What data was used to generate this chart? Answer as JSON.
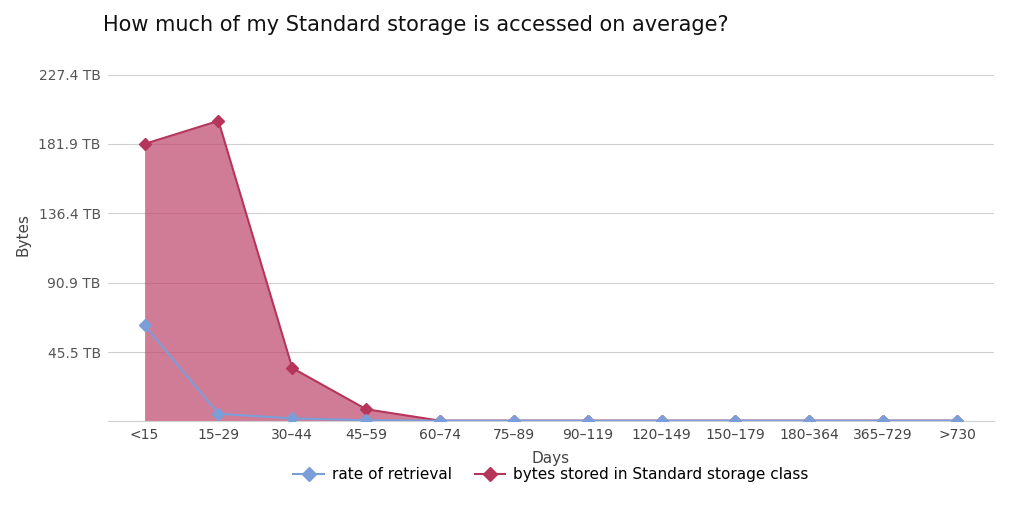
{
  "title": "How much of my Standard storage is accessed on average?",
  "xlabel": "Days",
  "ylabel": "Bytes",
  "categories": [
    "<15",
    "15–29",
    "30–44",
    "45–59",
    "60–74",
    "75–89",
    "90–119",
    "120–149",
    "150–179",
    "180–364",
    "365–729",
    ">730"
  ],
  "retrieval_values": [
    63,
    5,
    2,
    0.8,
    0.5,
    0.5,
    0.5,
    0.5,
    0.5,
    0.5,
    0.5,
    0.5
  ],
  "storage_values": [
    181.9,
    197,
    35,
    8,
    0.5,
    0.5,
    0.5,
    0.5,
    0.5,
    0.5,
    0.5,
    0.5
  ],
  "yticks": [
    0,
    45.5,
    90.9,
    136.4,
    181.9,
    227.4
  ],
  "ytick_labels": [
    "",
    "45.5 TB",
    "90.9 TB",
    "136.4 TB",
    "181.9 TB",
    "227.4 TB"
  ],
  "retrieval_color": "#7b9ed9",
  "storage_color": "#b5365a",
  "storage_fill_color": "#c0496e",
  "storage_fill_alpha": 0.72,
  "background_color": "#ffffff",
  "grid_color": "#d0d0d0",
  "title_fontsize": 15,
  "axis_label_fontsize": 11,
  "tick_fontsize": 10,
  "legend_fontsize": 11,
  "ylim_max": 245,
  "marker_style": "D",
  "marker_size": 6
}
